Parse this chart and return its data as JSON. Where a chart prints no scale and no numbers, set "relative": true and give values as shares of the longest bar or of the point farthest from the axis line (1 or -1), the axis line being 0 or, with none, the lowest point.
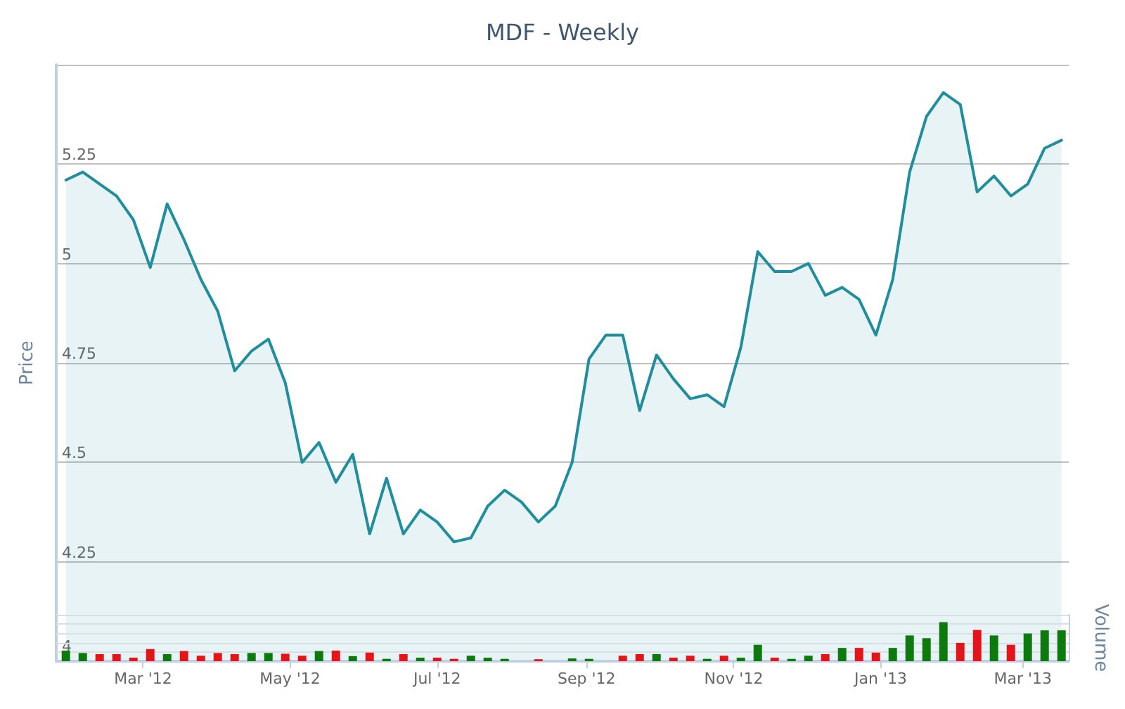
{
  "chart_data": [
    {
      "type": "area",
      "title": "MDF - Weekly",
      "ylabel": "Price",
      "color": "#208e9c",
      "x": [
        "2012-01-29",
        "2012-02-05",
        "2012-02-12",
        "2012-02-19",
        "2012-02-26",
        "2012-03-04",
        "2012-03-11",
        "2012-03-18",
        "2012-03-25",
        "2012-04-01",
        "2012-04-08",
        "2012-04-15",
        "2012-04-22",
        "2012-04-29",
        "2012-05-06",
        "2012-05-13",
        "2012-05-20",
        "2012-05-27",
        "2012-06-03",
        "2012-06-10",
        "2012-06-17",
        "2012-06-24",
        "2012-07-01",
        "2012-07-08",
        "2012-07-15",
        "2012-07-22",
        "2012-07-29",
        "2012-08-05",
        "2012-08-12",
        "2012-08-19",
        "2012-08-26",
        "2012-09-02",
        "2012-09-09",
        "2012-09-16",
        "2012-09-23",
        "2012-09-30",
        "2012-10-07",
        "2012-10-14",
        "2012-10-21",
        "2012-10-28",
        "2012-11-04",
        "2012-11-11",
        "2012-11-18",
        "2012-11-25",
        "2012-12-02",
        "2012-12-09",
        "2012-12-16",
        "2012-12-23",
        "2012-12-30",
        "2013-01-06",
        "2013-01-13",
        "2013-01-20",
        "2013-01-27",
        "2013-02-03",
        "2013-02-10",
        "2013-02-17",
        "2013-02-24",
        "2013-03-03",
        "2013-03-10",
        "2013-03-17"
      ],
      "values": [
        5.21,
        5.23,
        5.2,
        5.17,
        5.11,
        4.99,
        5.15,
        5.06,
        4.96,
        4.88,
        4.73,
        4.78,
        4.81,
        4.7,
        4.5,
        4.55,
        4.45,
        4.52,
        4.32,
        4.46,
        4.32,
        4.38,
        4.35,
        4.3,
        4.31,
        4.39,
        4.43,
        4.4,
        4.35,
        4.39,
        4.5,
        4.76,
        4.82,
        4.82,
        4.63,
        4.77,
        4.71,
        4.66,
        4.67,
        4.64,
        4.79,
        5.03,
        4.98,
        4.98,
        5,
        4.92,
        4.94,
        4.91,
        4.82,
        4.96,
        5.23,
        5.37,
        5.43,
        5.4,
        5.18,
        5.22,
        5.17,
        5.2,
        5.29,
        5.31
      ],
      "xlim": [
        "2012-01-25",
        "2013-03-20"
      ],
      "ylim": [
        4,
        5.5
      ],
      "yticks": [
        4,
        4.25,
        4.5,
        4.75,
        5,
        5.25,
        {
          "value": 5.5,
          "label": null
        }
      ],
      "grid": "y",
      "tick_labels": "y"
    },
    {
      "type": "bar",
      "ylabel": "Volume",
      "relative": true,
      "x": [
        "2012-01-29",
        "2012-02-05",
        "2012-02-12",
        "2012-02-19",
        "2012-02-26",
        "2012-03-04",
        "2012-03-11",
        "2012-03-18",
        "2012-03-25",
        "2012-04-01",
        "2012-04-08",
        "2012-04-15",
        "2012-04-22",
        "2012-04-29",
        "2012-05-06",
        "2012-05-13",
        "2012-05-20",
        "2012-05-27",
        "2012-06-03",
        "2012-06-10",
        "2012-06-17",
        "2012-06-24",
        "2012-07-01",
        "2012-07-08",
        "2012-07-15",
        "2012-07-22",
        "2012-07-29",
        "2012-08-12",
        "2012-08-26",
        "2012-09-02",
        "2012-09-16",
        "2012-09-23",
        "2012-09-30",
        "2012-10-07",
        "2012-10-14",
        "2012-10-21",
        "2012-10-28",
        "2012-11-04",
        "2012-11-11",
        "2012-11-18",
        "2012-11-25",
        "2012-12-02",
        "2012-12-09",
        "2012-12-16",
        "2012-12-23",
        "2012-12-30",
        "2013-01-06",
        "2013-01-13",
        "2013-01-20",
        "2013-01-27",
        "2013-02-03",
        "2013-02-10",
        "2013-02-17",
        "2013-02-24",
        "2013-03-03",
        "2013-03-10",
        "2013-03-17"
      ],
      "values": [
        0.27,
        0.21,
        0.18,
        0.18,
        0.09,
        0.31,
        0.18,
        0.26,
        0.14,
        0.21,
        0.18,
        0.21,
        0.21,
        0.19,
        0.14,
        0.26,
        0.27,
        0.13,
        0.22,
        0.06,
        0.18,
        0.09,
        0.09,
        0.06,
        0.14,
        0.09,
        0.06,
        0.05,
        0.07,
        0.06,
        0.14,
        0.18,
        0.18,
        0.09,
        0.14,
        0.06,
        0.14,
        0.09,
        0.42,
        0.09,
        0.06,
        0.14,
        0.18,
        0.34,
        0.34,
        0.22,
        0.34,
        0.66,
        0.59,
        1,
        0.47,
        0.8,
        0.66,
        0.42,
        0.71,
        0.79,
        0.79
      ],
      "colors": [
        "#0d7a0d",
        "#0d7a0d",
        "#e3151b",
        "#e3151b",
        "#e3151b",
        "#e3151b",
        "#0d7a0d",
        "#e3151b",
        "#e3151b",
        "#e3151b",
        "#e3151b",
        "#0d7a0d",
        "#0d7a0d",
        "#e3151b",
        "#e3151b",
        "#0d7a0d",
        "#e3151b",
        "#0d7a0d",
        "#e3151b",
        "#0d7a0d",
        "#e3151b",
        "#0d7a0d",
        "#e3151b",
        "#e3151b",
        "#0d7a0d",
        "#0d7a0d",
        "#0d7a0d",
        "#e3151b",
        "#0d7a0d",
        "#0d7a0d",
        "#e3151b",
        "#e3151b",
        "#0d7a0d",
        "#e3151b",
        "#e3151b",
        "#0d7a0d",
        "#e3151b",
        "#0d7a0d",
        "#0d7a0d",
        "#e3151b",
        "#0d7a0d",
        "#0d7a0d",
        "#e3151b",
        "#0d7a0d",
        "#e3151b",
        "#e3151b",
        "#0d7a0d",
        "#0d7a0d",
        "#0d7a0d",
        "#0d7a0d",
        "#e3151b",
        "#e3151b",
        "#0d7a0d",
        "#e3151b",
        "#0d7a0d",
        "#0d7a0d",
        "#0d7a0d"
      ],
      "xlim": [
        "2012-01-25",
        "2013-03-20"
      ],
      "xticks": [
        {
          "value": "2012-03-01",
          "label": "Mar '12"
        },
        {
          "value": "2012-05-01",
          "label": "May '12"
        },
        {
          "value": "2012-07-01",
          "label": "Jul '12"
        },
        {
          "value": "2012-09-01",
          "label": "Sep '12"
        },
        {
          "value": "2012-11-01",
          "label": "Nov '12"
        },
        {
          "value": "2013-01-01",
          "label": "Jan '13"
        },
        {
          "value": "2013-03-01",
          "label": "Mar '13"
        }
      ],
      "grid": "y",
      "tick_labels": "x"
    }
  ]
}
